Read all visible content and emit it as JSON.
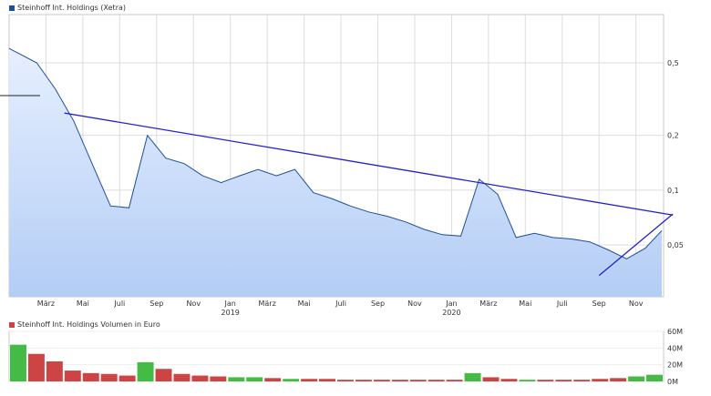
{
  "chart_data": [
    {
      "type": "area",
      "legend": "Steinhoff Int. Holdings (Xetra)",
      "y_scale": "log",
      "ylim": [
        0.026,
        0.92
      ],
      "y_ticks": [
        {
          "value": 0.5,
          "label": "0,5"
        },
        {
          "value": 0.2,
          "label": "0,2"
        },
        {
          "value": 0.1,
          "label": "0,1"
        },
        {
          "value": 0.05,
          "label": "0,05"
        }
      ],
      "x_ticks": [
        "März",
        "Mai",
        "Juli",
        "Sep",
        "Nov",
        "Jan",
        "März",
        "Mai",
        "Juli",
        "Sep",
        "Nov",
        "Jan",
        "März",
        "Mai",
        "Juli",
        "Sep",
        "Nov"
      ],
      "x_year_labels": [
        {
          "after_tick": 5,
          "label": "2019"
        },
        {
          "after_tick": 11,
          "label": "2020"
        }
      ],
      "grid": true,
      "colors": {
        "line": "#1f4e99",
        "fill_top": "#e6efff",
        "fill_bottom": "#b3cdf5",
        "trend": "#2222cc",
        "grid": "#dddddd"
      },
      "series": [
        {
          "name": "Steinhoff Int. Holdings (Xetra)",
          "x": [
            "Jan 2018",
            "Feb 2018",
            "Mär 2018",
            "Apr 2018",
            "Mai 2018",
            "Jun 2018",
            "Jul 2018",
            "Aug 2018",
            "Sep 2018",
            "Okt 2018",
            "Nov 2018",
            "Dez 2018",
            "Jan 2019",
            "Feb 2019",
            "Mär 2019",
            "Apr 2019",
            "Mai 2019",
            "Jun 2019",
            "Jul 2019",
            "Aug 2019",
            "Sep 2019",
            "Okt 2019",
            "Nov 2019",
            "Dez 2019",
            "Jan 2020",
            "Feb 2020",
            "Mär 2020",
            "Apr 2020",
            "Mai 2020",
            "Jun 2020",
            "Jul 2020",
            "Aug 2020",
            "Sep 2020",
            "Okt 2020",
            "Nov 2020",
            "Dez 2020"
          ],
          "values": [
            0.6,
            0.5,
            0.36,
            0.24,
            0.14,
            0.082,
            0.08,
            0.2,
            0.15,
            0.14,
            0.12,
            0.11,
            0.12,
            0.13,
            0.12,
            0.13,
            0.097,
            0.09,
            0.082,
            0.076,
            0.072,
            0.067,
            0.061,
            0.057,
            0.056,
            0.115,
            0.095,
            0.055,
            0.058,
            0.055,
            0.054,
            0.052,
            0.047,
            0.042,
            0.048,
            0.06
          ]
        }
      ],
      "trendlines": [
        {
          "from": {
            "x": "Apr 2018",
            "y": 0.265
          },
          "to": {
            "x": "Jan 2021",
            "y": 0.073
          }
        },
        {
          "from": {
            "x": "Sep 2020",
            "y": 0.034
          },
          "to": {
            "x": "Jan 2021",
            "y": 0.074
          }
        }
      ]
    },
    {
      "type": "bar",
      "legend": "Steinhoff Int. Holdings Volumen in Euro",
      "ylim": [
        0,
        60
      ],
      "y_ticks": [
        {
          "value": 60,
          "label": "60M"
        },
        {
          "value": 40,
          "label": "40M"
        },
        {
          "value": 20,
          "label": "20M"
        },
        {
          "value": 0,
          "label": "0M"
        }
      ],
      "colors": {
        "up": "#44bb44",
        "down": "#cc4444"
      },
      "series": [
        {
          "name": "Steinhoff Int. Holdings Volumen in Euro",
          "values_million": [
            44,
            33,
            24,
            13,
            10,
            9,
            7,
            23,
            15,
            9,
            7,
            6,
            5,
            5,
            4,
            3,
            3,
            3,
            2,
            2,
            2,
            2,
            2,
            2,
            2,
            10,
            5,
            3,
            2,
            2,
            2,
            2,
            3,
            4,
            6,
            8
          ]
        }
      ]
    }
  ]
}
